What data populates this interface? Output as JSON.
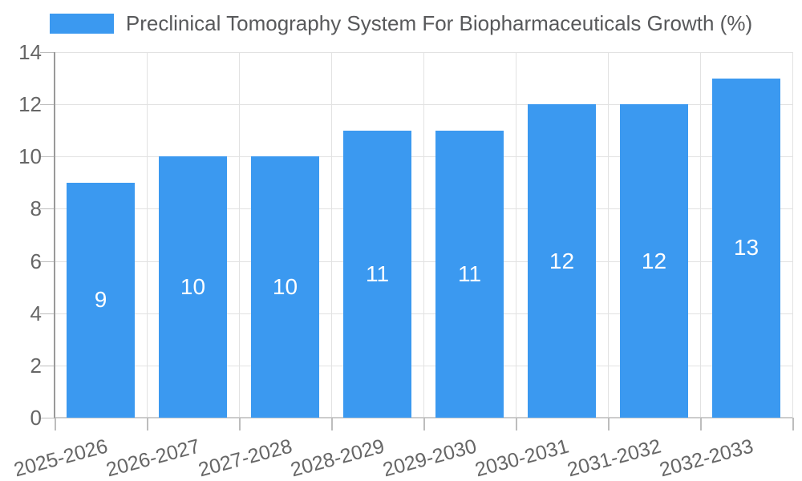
{
  "legend": {
    "label": "Preclinical Tomography System For Biopharmaceuticals Growth (%)"
  },
  "chart_data": {
    "type": "bar",
    "title": "Preclinical Tomography System For Biopharmaceuticals Growth (%)",
    "categories": [
      "2025-2026",
      "2026-2027",
      "2027-2028",
      "2028-2029",
      "2029-2030",
      "2030-2031",
      "2031-2032",
      "2032-2033"
    ],
    "values": [
      9,
      10,
      10,
      11,
      11,
      12,
      12,
      13
    ],
    "value_labels_shown": [
      9,
      10,
      10,
      11,
      11,
      12,
      12,
      13
    ],
    "xlabel": "",
    "ylabel": "",
    "ylim": [
      0,
      14
    ],
    "yticks": [
      0,
      2,
      4,
      6,
      8,
      10,
      12,
      14
    ],
    "grid": "on",
    "legend_position": "top-center",
    "x_tick_label_rotation_deg": -15,
    "value_label_position": "inside-center"
  },
  "colors": {
    "bar": "#3b99f0",
    "grid": "#e2e2e2",
    "axis_line": "#9a9a9a",
    "tick_mark": "#bdbdbd",
    "baseline": "#cccccc",
    "axis_label": "#666666",
    "value_label": "#ffffff",
    "legend_text": "#58595b",
    "background": "#ffffff"
  }
}
